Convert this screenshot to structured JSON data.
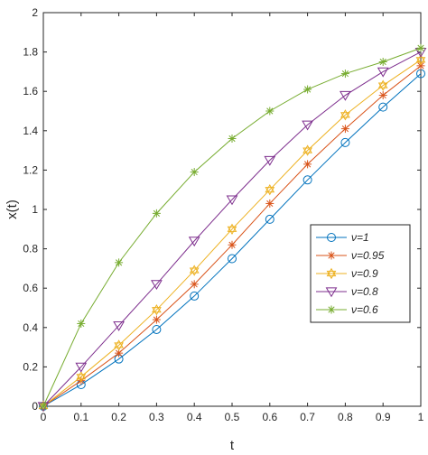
{
  "chart_data": {
    "type": "line",
    "title": "",
    "xlabel": "t",
    "ylabel": "x(t)",
    "xlim": [
      0,
      1
    ],
    "ylim": [
      0,
      2
    ],
    "xticks": [
      "0",
      "0.1",
      "0.2",
      "0.3",
      "0.4",
      "0.5",
      "0.6",
      "0.7",
      "0.8",
      "0.9",
      "1"
    ],
    "yticks": [
      "0",
      "0.2",
      "0.4",
      "0.6",
      "0.8",
      "1",
      "1.2",
      "1.4",
      "1.6",
      "1.8",
      "2"
    ],
    "grid": false,
    "legend_position": "right",
    "x": [
      0,
      0.1,
      0.2,
      0.3,
      0.4,
      0.5,
      0.6,
      0.7,
      0.8,
      0.9,
      1.0
    ],
    "series": [
      {
        "name": "ν=1",
        "marker": "circle",
        "color": "#0072BD",
        "values": [
          0,
          0.11,
          0.24,
          0.39,
          0.56,
          0.75,
          0.95,
          1.15,
          1.34,
          1.52,
          1.69
        ]
      },
      {
        "name": "ν=0.95",
        "marker": "asterisk",
        "color": "#D95319",
        "values": [
          0,
          0.13,
          0.27,
          0.44,
          0.62,
          0.82,
          1.03,
          1.23,
          1.41,
          1.58,
          1.73
        ]
      },
      {
        "name": "ν=0.9",
        "marker": "hexagram",
        "color": "#EDB120",
        "values": [
          0,
          0.15,
          0.31,
          0.49,
          0.69,
          0.9,
          1.1,
          1.3,
          1.48,
          1.63,
          1.76
        ]
      },
      {
        "name": "ν=0.8",
        "marker": "triangle-down",
        "color": "#7E2F8E",
        "values": [
          0,
          0.2,
          0.41,
          0.62,
          0.84,
          1.05,
          1.25,
          1.43,
          1.58,
          1.7,
          1.8
        ]
      },
      {
        "name": "ν=0.6",
        "marker": "asterisk",
        "color": "#77AC30",
        "values": [
          0,
          0.42,
          0.73,
          0.98,
          1.19,
          1.36,
          1.5,
          1.61,
          1.69,
          1.75,
          1.82
        ]
      }
    ]
  }
}
